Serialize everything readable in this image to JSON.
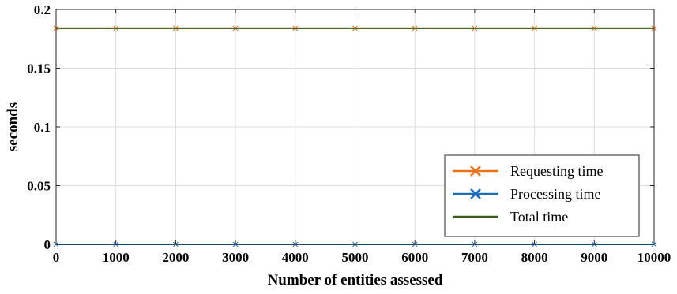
{
  "chart_data": {
    "type": "line",
    "title": "",
    "xlabel": "Number of entities assessed",
    "ylabel": "seconds",
    "xlim": [
      0,
      10000
    ],
    "ylim": [
      0,
      0.2
    ],
    "xticks": [
      0,
      1000,
      2000,
      3000,
      4000,
      5000,
      6000,
      7000,
      8000,
      9000,
      10000
    ],
    "xtick_labels": [
      "0",
      "1000",
      "2000",
      "3000",
      "4000",
      "5000",
      "6000",
      "7000",
      "8000",
      "9000",
      "10000"
    ],
    "yticks": [
      0,
      0.05,
      0.1,
      0.15,
      0.2
    ],
    "ytick_labels": [
      "0",
      "0.05",
      "0.1",
      "0.15",
      "0.2"
    ],
    "grid": true,
    "legend_position": "bottom-right",
    "series": [
      {
        "name": "Requesting time",
        "color": "#e8731c",
        "marker": "x",
        "x": [
          0,
          1000,
          2000,
          3000,
          4000,
          5000,
          6000,
          7000,
          8000,
          9000,
          10000
        ],
        "values": [
          0.184,
          0.184,
          0.184,
          0.184,
          0.184,
          0.184,
          0.184,
          0.184,
          0.184,
          0.184,
          0.184
        ]
      },
      {
        "name": "Processing time",
        "color": "#1f6fb4",
        "marker": "x",
        "x": [
          0,
          1000,
          2000,
          3000,
          4000,
          5000,
          6000,
          7000,
          8000,
          9000,
          10000
        ],
        "values": [
          0,
          0,
          0,
          0,
          0,
          0,
          0,
          0,
          0,
          0,
          0
        ]
      },
      {
        "name": "Total time",
        "color": "#3e5f1c",
        "marker": "none",
        "x": [
          0,
          1000,
          2000,
          3000,
          4000,
          5000,
          6000,
          7000,
          8000,
          9000,
          10000
        ],
        "values": [
          0.184,
          0.184,
          0.184,
          0.184,
          0.184,
          0.184,
          0.184,
          0.184,
          0.184,
          0.184,
          0.184
        ]
      }
    ]
  }
}
